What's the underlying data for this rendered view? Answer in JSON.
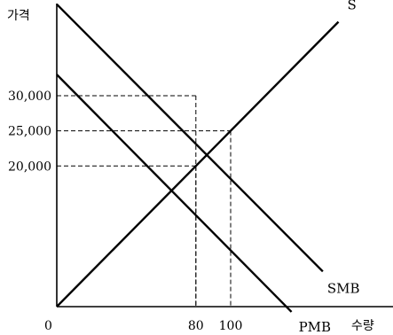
{
  "chart_data": {
    "type": "line",
    "ylabel": "가격",
    "xlabel": "수량",
    "origin_label": "0",
    "grid": false,
    "legend": "none",
    "y_ticks": [
      {
        "value": 30000,
        "label": "30,000"
      },
      {
        "value": 25000,
        "label": "25,000"
      },
      {
        "value": 20000,
        "label": "20,000"
      }
    ],
    "x_ticks": [
      {
        "value": 80,
        "label": "80"
      },
      {
        "value": 100,
        "label": "100"
      }
    ],
    "xlim": [
      0,
      190
    ],
    "ylim": [
      0,
      43000
    ],
    "series": [
      {
        "name": "S",
        "x": [
          0,
          162
        ],
        "y": [
          0,
          40500
        ]
      },
      {
        "name": "SMB",
        "x": [
          0,
          153
        ],
        "y": [
          43000,
          5000
        ]
      },
      {
        "name": "PMB",
        "x": [
          0,
          135
        ],
        "y": [
          33000,
          -750
        ]
      }
    ],
    "guides": [
      {
        "x": 80,
        "y": 30000
      },
      {
        "x": 100,
        "y": 25000
      },
      {
        "x": 80,
        "y": 20000
      }
    ]
  }
}
